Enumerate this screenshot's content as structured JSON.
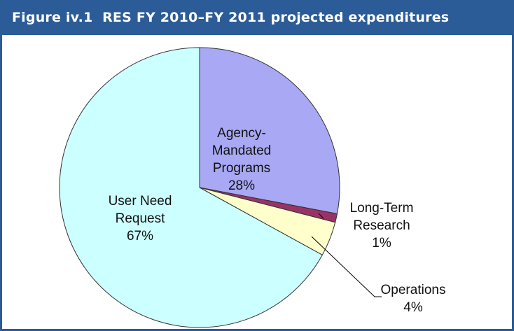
{
  "chart_data": {
    "type": "pie",
    "title": "Figure iv.1  RES FY 2010–FY 2011 projected expenditures",
    "categories": [
      "Agency-Mandated Programs",
      "Long-Term Research",
      "Operations",
      "User Need Request"
    ],
    "values": [
      28,
      1,
      4,
      67
    ],
    "value_labels": [
      "28%",
      "1%",
      "4%",
      "67%"
    ],
    "colors": [
      "#a8a8f4",
      "#993366",
      "#ffffcc",
      "#ccffff"
    ]
  }
}
